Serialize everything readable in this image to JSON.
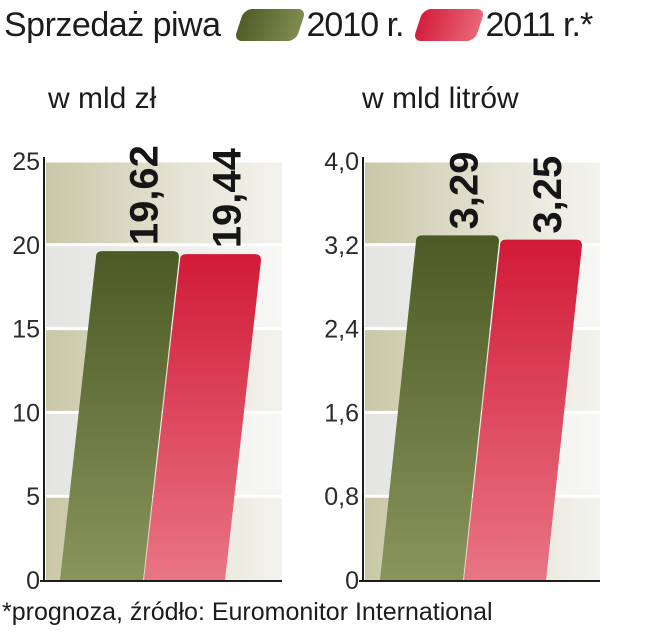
{
  "header": {
    "title": "Sprzedaż piwa"
  },
  "legend": [
    {
      "label": "2010 r.",
      "color": "#5b6a2e"
    },
    {
      "label": "2011 r.*",
      "color": "#d7233f"
    }
  ],
  "footnote": "*prognoza, źródło: Euromonitor International",
  "chart_data": [
    {
      "type": "bar",
      "title": "",
      "ylabel": "w mld zł",
      "categories": [
        "2010 r.",
        "2011 r.*"
      ],
      "values": [
        19.62,
        19.44
      ],
      "value_labels": [
        "19,62",
        "19,44"
      ],
      "ylim": [
        0,
        25
      ],
      "yticks": [
        0,
        5,
        10,
        15,
        20,
        25
      ],
      "ytick_labels": [
        "0",
        "5",
        "10",
        "15",
        "20",
        "25"
      ],
      "colors": [
        "#5b6a2e",
        "#d7233f"
      ],
      "grid": true
    },
    {
      "type": "bar",
      "title": "",
      "ylabel": "w mld litrów",
      "categories": [
        "2010 r.",
        "2011 r.*"
      ],
      "values": [
        3.29,
        3.25
      ],
      "value_labels": [
        "3,29",
        "3,25"
      ],
      "ylim": [
        0,
        4.0
      ],
      "yticks": [
        0,
        0.8,
        1.6,
        2.4,
        3.2,
        4.0
      ],
      "ytick_labels": [
        "0",
        "0,8",
        "1,6",
        "2,4",
        "3,2",
        "4,0"
      ],
      "colors": [
        "#5b6a2e",
        "#d7233f"
      ],
      "grid": true
    }
  ]
}
